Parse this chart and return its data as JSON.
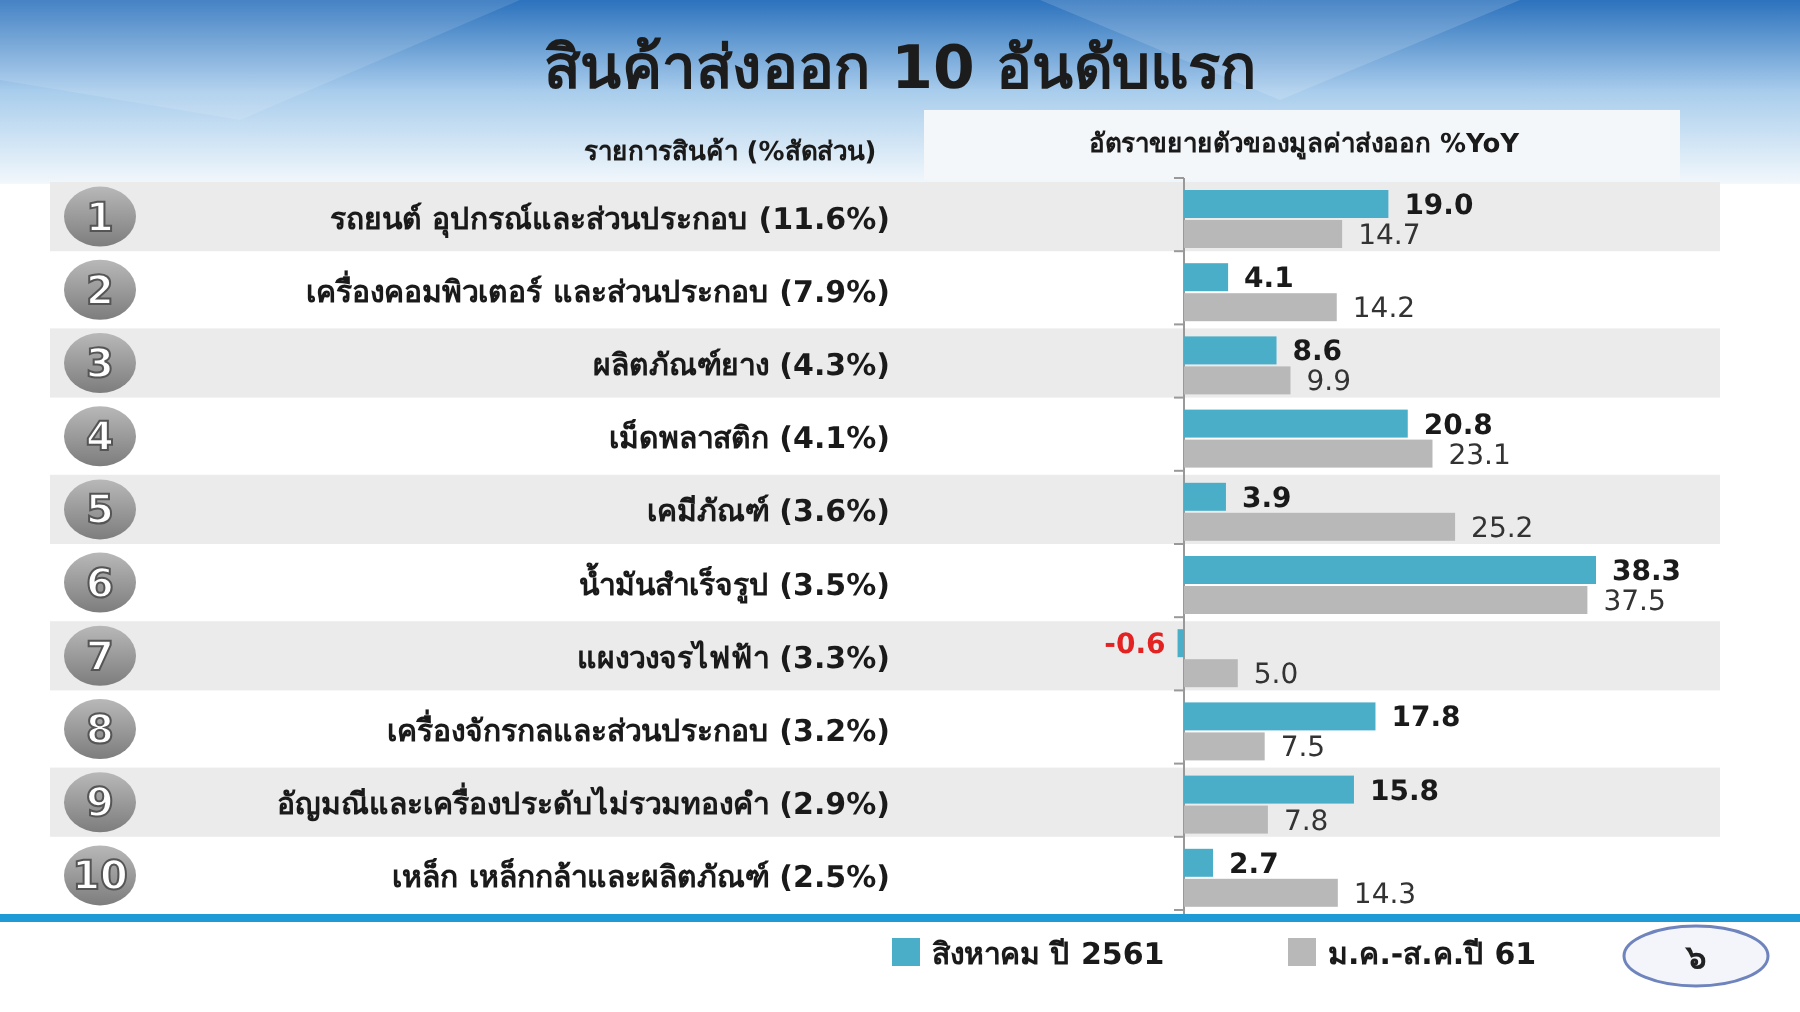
{
  "chart_data": {
    "type": "bar",
    "orientation": "horizontal",
    "title": "สินค้าส่งออก 10 อันดับแรก",
    "ylabel": "รายการสินค้า (%สัดส่วน)",
    "xlabel": "อัตราขยายตัวของมูลค่าส่งออก %YoY",
    "categories": [
      "รถยนต์ อุปกรณ์และส่วนประกอบ (11.6%)",
      "เครื่องคอมพิวเตอร์ และส่วนประกอบ (7.9%)",
      "ผลิตภัณฑ์ยาง (4.3%)",
      "เม็ดพลาสติก (4.1%)",
      "เคมีภัณฑ์ (3.6%)",
      "น้ำมันสำเร็จรูป (3.5%)",
      "แผงวงจรไฟฟ้า (3.3%)",
      "เครื่องจักรกลและส่วนประกอบ (3.2%)",
      "อัญมณีและเครื่องประดับไม่รวมทองคำ (2.9%)",
      "เหล็ก เหล็กกล้าและผลิตภัณฑ์ (2.5%)"
    ],
    "series": [
      {
        "name": "สิงหาคม ปี 2561",
        "color": "#4aaec8",
        "values": [
          19.0,
          4.1,
          8.6,
          20.8,
          3.9,
          38.3,
          -0.6,
          17.8,
          15.8,
          2.7
        ],
        "value_labels": [
          "19.0",
          "4.1",
          "8.6",
          "20.8",
          "3.9",
          "38.3",
          "-0.6",
          "17.8",
          "15.8",
          "2.7"
        ]
      },
      {
        "name": "ม.ค.-ส.ค.ปี 61",
        "color": "#b8b8b8",
        "values": [
          14.7,
          14.2,
          9.9,
          23.1,
          25.2,
          37.5,
          5.0,
          7.5,
          7.8,
          14.3
        ],
        "value_labels": [
          "14.7",
          "14.2",
          "9.9",
          "23.1",
          "25.2",
          "37.5",
          "5.0",
          "7.5",
          "7.8",
          "14.3"
        ]
      }
    ],
    "legend": "bottom",
    "annotations": [
      "1",
      "2",
      "3",
      "4",
      "5",
      "6",
      "7",
      "8",
      "9",
      "10",
      "๖"
    ]
  }
}
